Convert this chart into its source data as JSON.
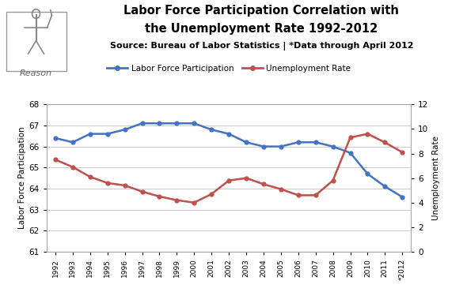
{
  "title_line1": "Labor Force Participation Correlation with",
  "title_line2": "the Unemployment Rate 1992-2012",
  "subtitle": "Source: Bureau of Labor Statistics | *Data through April 2012",
  "years": [
    "1992",
    "1993",
    "1994",
    "1995",
    "1996",
    "1997",
    "1998",
    "1999",
    "2000",
    "2001",
    "2002",
    "2003",
    "2004",
    "2005",
    "2006",
    "2007",
    "2008",
    "2009",
    "2010",
    "2011",
    "*2012"
  ],
  "lfp": [
    66.4,
    66.2,
    66.6,
    66.6,
    66.8,
    67.1,
    67.1,
    67.1,
    67.1,
    66.8,
    66.6,
    66.2,
    66.0,
    66.0,
    66.2,
    66.2,
    66.0,
    65.7,
    64.7,
    64.1,
    63.6
  ],
  "unemp": [
    7.5,
    6.9,
    6.1,
    5.6,
    5.4,
    4.9,
    4.5,
    4.2,
    4.0,
    4.7,
    5.8,
    6.0,
    5.5,
    5.1,
    4.6,
    4.6,
    5.8,
    9.3,
    9.6,
    8.9,
    8.1
  ],
  "lfp_color": "#4472C4",
  "unemp_color": "#C0504D",
  "ylabel_left": "Labor Force Participation",
  "ylabel_right": "Unemployment Rate",
  "ylim_left": [
    61.0,
    68.0
  ],
  "ylim_right": [
    0.0,
    12.0
  ],
  "yticks_left": [
    61.0,
    62.0,
    63.0,
    64.0,
    65.0,
    66.0,
    67.0,
    68.0
  ],
  "yticks_right": [
    0.0,
    2.0,
    4.0,
    6.0,
    8.0,
    10.0,
    12.0
  ],
  "legend_lfp": "Labor Force Participation",
  "legend_unemp": "Unemployment Rate",
  "bg_color": "#FFFFFF",
  "plot_bg_color": "#FFFFFF",
  "grid_color": "#C8C8C8",
  "logo_box_color": "#E8E8E8",
  "logo_border_color": "#999999"
}
